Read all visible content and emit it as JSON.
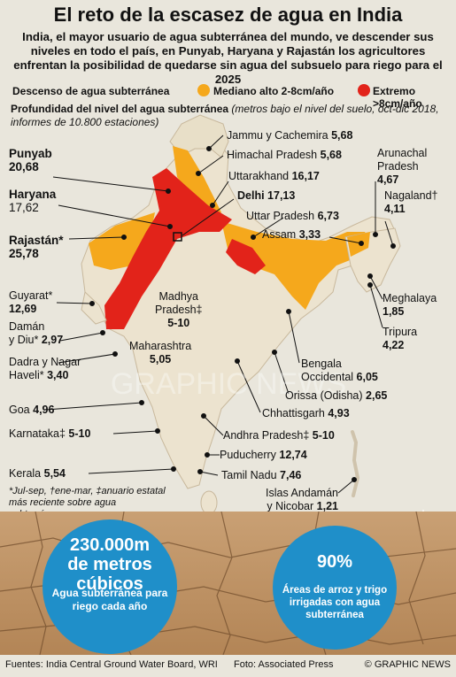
{
  "title": "El reto de la escasez de agua en India",
  "subtitle": "India, el mayor usuario de agua subterránea del mundo, ve descender sus niveles en todo el país, en Punyab, Haryana y Rajastán los agricultores enfrentan la posibilidad de quedarse sin agua del subsuelo para riego para el 2025",
  "legend": {
    "title": "Descenso de agua subterránea",
    "items": [
      {
        "label": "Mediano alto 2-8cm/año",
        "color": "#f5a81c"
      },
      {
        "label": "Extremo >8cm/año",
        "color": "#e2231a"
      }
    ]
  },
  "depth_title": "Profundidad del nivel del agua subterránea",
  "depth_sub": "(metros bajo el nivel del suelo, oct-dic 2018, informes de 10.800 estaciones)",
  "states": {
    "jammu": {
      "name": "Jammu y Cachemira",
      "value": "5,68"
    },
    "himachal": {
      "name": "Himachal Pradesh",
      "value": "5,68"
    },
    "punjab": {
      "name": "Punyab",
      "value": "20,68"
    },
    "uttarakhand": {
      "name": "Uttarakhand",
      "value": "16,17"
    },
    "arunachal": {
      "name1": "Arunachal",
      "name2": "Pradesh",
      "value": "4,67"
    },
    "haryana": {
      "name": "Haryana",
      "value": "17,62"
    },
    "delhi": {
      "name": "Delhi",
      "value": "17,13"
    },
    "nagaland": {
      "name": "Nagaland†",
      "value": "4,11"
    },
    "uttar": {
      "name": "Uttar Pradesh",
      "value": "6,73"
    },
    "rajasthan": {
      "name": "Rajastán*",
      "value": "25,78"
    },
    "assam": {
      "name": "Assam",
      "value": "3,33"
    },
    "gujarat": {
      "name": "Guyarat*",
      "value": "12,69"
    },
    "madhya": {
      "name1": "Madhya",
      "name2": "Pradesh‡",
      "value": "5-10"
    },
    "meghalaya": {
      "name": "Meghalaya",
      "value": "1,85"
    },
    "daman": {
      "name1": "Damán",
      "name2": "y Diu*",
      "value": "2,97"
    },
    "maharashtra": {
      "name": "Maharashtra",
      "value": "5,05"
    },
    "tripura": {
      "name": "Tripura",
      "value": "4,22"
    },
    "dadra": {
      "name1": "Dadra y Nagar",
      "name2": "Haveli*",
      "value": "3,40"
    },
    "bengal": {
      "name1": "Bengala",
      "name2": "Occidental",
      "value": "6,05"
    },
    "orissa": {
      "name": "Orissa (Odisha)",
      "value": "2,65"
    },
    "goa": {
      "name": "Goa",
      "value": "4,96"
    },
    "chhattisgarh": {
      "name": "Chhattisgarh",
      "value": "4,93"
    },
    "karnataka": {
      "name": "Karnataka‡",
      "value": "5-10"
    },
    "andhra": {
      "name": "Andhra Pradesh‡",
      "value": "5-10"
    },
    "puducherry": {
      "name": "Puducherry",
      "value": "12,74"
    },
    "kerala": {
      "name": "Kerala",
      "value": "5,54"
    },
    "tamil": {
      "name": "Tamil Nadu",
      "value": "7,46"
    },
    "andaman": {
      "name1": "Islas Andamán",
      "name2": "y Nicobar",
      "value": "1,21"
    }
  },
  "footnote": "*Jul-sep, †ene-mar, ‡anuario estatal más reciente sobre agua subterránea",
  "stat1": {
    "line1": "230.000m",
    "line2": "de metros cúbicos",
    "desc": "Agua subterránea para riego cada año"
  },
  "stat2": {
    "value": "90%",
    "desc": "Áreas de arroz y trigo irrigadas con agua subterránea"
  },
  "footer": {
    "sources": "Fuentes: India Central Ground Water Board, WRI",
    "photo": "Foto: Associated Press",
    "credit": "© GRAPHIC NEWS"
  },
  "watermark": "GRAPHIC NEWS",
  "colors": {
    "medium": "#f5a81c",
    "extreme": "#e2231a",
    "land": "#ece3cf",
    "water_blue": "#1f8fc9"
  }
}
